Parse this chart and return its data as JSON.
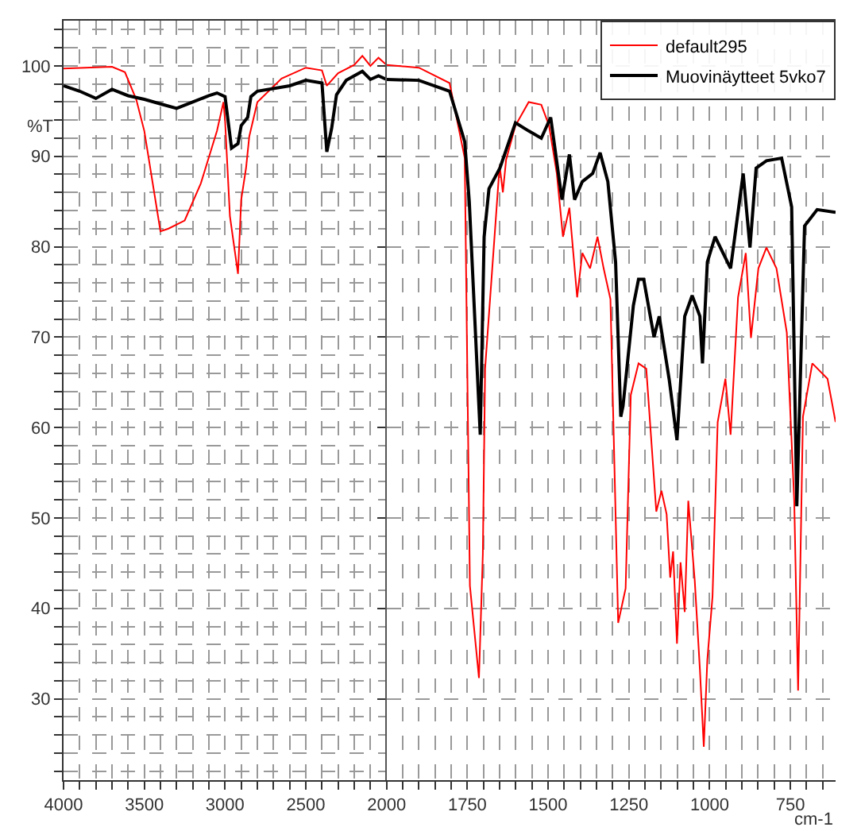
{
  "chart_data": [
    {
      "type": "line",
      "ylabel": "%T",
      "xlim": [
        4000,
        2000
      ],
      "ylim": [
        21,
        105
      ],
      "grid": true,
      "xticks": [
        4000,
        {
          "value": 3900,
          "label": null
        },
        {
          "value": 3800,
          "label": null
        },
        {
          "value": 3700,
          "label": null
        },
        {
          "value": 3600,
          "label": null
        },
        3500,
        {
          "value": 3400,
          "label": null
        },
        {
          "value": 3300,
          "label": null
        },
        {
          "value": 3200,
          "label": null
        },
        {
          "value": 3100,
          "label": null
        },
        3000,
        {
          "value": 2900,
          "label": null
        },
        {
          "value": 2800,
          "label": null
        },
        {
          "value": 2700,
          "label": null
        },
        {
          "value": 2600,
          "label": null
        },
        2500,
        {
          "value": 2400,
          "label": null
        },
        {
          "value": 2300,
          "label": null
        },
        {
          "value": 2200,
          "label": null
        },
        {
          "value": 2100,
          "label": null
        },
        2000
      ],
      "yticks": [
        {
          "value": 22,
          "label": null
        },
        {
          "value": 24,
          "label": null
        },
        {
          "value": 26,
          "label": null
        },
        {
          "value": 28,
          "label": null
        },
        30,
        {
          "value": 32,
          "label": null
        },
        {
          "value": 34,
          "label": null
        },
        {
          "value": 36,
          "label": null
        },
        {
          "value": 38,
          "label": null
        },
        40,
        {
          "value": 42,
          "label": null
        },
        {
          "value": 44,
          "label": null
        },
        {
          "value": 46,
          "label": null
        },
        {
          "value": 48,
          "label": null
        },
        50,
        {
          "value": 52,
          "label": null
        },
        {
          "value": 54,
          "label": null
        },
        {
          "value": 56,
          "label": null
        },
        {
          "value": 58,
          "label": null
        },
        60,
        {
          "value": 62,
          "label": null
        },
        {
          "value": 64,
          "label": null
        },
        {
          "value": 66,
          "label": null
        },
        {
          "value": 68,
          "label": null
        },
        70,
        {
          "value": 72,
          "label": null
        },
        {
          "value": 74,
          "label": null
        },
        {
          "value": 76,
          "label": null
        },
        {
          "value": 78,
          "label": null
        },
        80,
        {
          "value": 82,
          "label": null
        },
        {
          "value": 84,
          "label": null
        },
        {
          "value": 86,
          "label": null
        },
        {
          "value": 88,
          "label": null
        },
        90,
        {
          "value": 92,
          "label": null
        },
        {
          "value": 94,
          "label": null
        },
        {
          "value": 96,
          "label": null
        },
        {
          "value": 98,
          "label": null
        },
        100,
        {
          "value": 102,
          "label": null
        },
        {
          "value": 104,
          "label": null
        }
      ],
      "series": [
        {
          "color": "#ff0000",
          "x": [
            4000,
            3700,
            3620,
            3550,
            3500,
            3400,
            3350,
            3250,
            3150,
            3050,
            3010,
            3000,
            2970,
            2920,
            2900,
            2870,
            2850,
            2800,
            2650,
            2500,
            2400,
            2370,
            2300,
            2200,
            2150,
            2100,
            2050,
            2000
          ],
          "values": [
            99.7,
            99.9,
            99.3,
            96.3,
            92.8,
            81.7,
            82.0,
            82.9,
            87.0,
            92.8,
            96.0,
            94.0,
            83.4,
            77.0,
            85.2,
            88.7,
            92.2,
            96.0,
            98.6,
            99.8,
            99.5,
            97.8,
            99.2,
            100.1,
            101.1,
            100.0,
            100.9,
            100.1
          ]
        },
        {
          "color": "#000000",
          "x": [
            4000,
            3900,
            3800,
            3700,
            3600,
            3500,
            3400,
            3300,
            3200,
            3100,
            3050,
            3000,
            2960,
            2920,
            2900,
            2860,
            2840,
            2800,
            2600,
            2500,
            2400,
            2370,
            2340,
            2310,
            2250,
            2150,
            2100,
            2050,
            2000
          ],
          "values": [
            97.8,
            97.2,
            96.4,
            97.4,
            96.7,
            96.3,
            95.8,
            95.3,
            96.0,
            96.7,
            97.0,
            96.6,
            90.9,
            91.4,
            93.4,
            94.3,
            96.6,
            97.2,
            97.8,
            98.4,
            98.1,
            90.5,
            93.1,
            96.8,
            98.4,
            99.4,
            98.5,
            98.9,
            98.5
          ]
        }
      ]
    },
    {
      "type": "line",
      "xlabel": "cm-1",
      "xlim": [
        2000,
        610
      ],
      "ylim": [
        21,
        105
      ],
      "grid": true,
      "tick_labels": "x",
      "legend": "top right",
      "xticks": [
        {
          "value": 1950,
          "label": null
        },
        {
          "value": 1900,
          "label": null
        },
        {
          "value": 1850,
          "label": null
        },
        {
          "value": 1800,
          "label": null
        },
        1750,
        {
          "value": 1700,
          "label": null
        },
        {
          "value": 1650,
          "label": null
        },
        {
          "value": 1600,
          "label": null
        },
        {
          "value": 1550,
          "label": null
        },
        1500,
        {
          "value": 1450,
          "label": null
        },
        {
          "value": 1400,
          "label": null
        },
        {
          "value": 1350,
          "label": null
        },
        {
          "value": 1300,
          "label": null
        },
        1250,
        {
          "value": 1200,
          "label": null
        },
        {
          "value": 1150,
          "label": null
        },
        {
          "value": 1100,
          "label": null
        },
        {
          "value": 1050,
          "label": null
        },
        1000,
        {
          "value": 950,
          "label": null
        },
        {
          "value": 900,
          "label": null
        },
        {
          "value": 850,
          "label": null
        },
        {
          "value": 800,
          "label": null
        },
        750,
        {
          "value": 700,
          "label": null
        },
        {
          "value": 650,
          "label": null
        }
      ],
      "yticks": [
        30,
        40,
        50,
        60,
        70,
        80,
        90,
        100
      ],
      "series": [
        {
          "name": "default295",
          "color": "#ff0000",
          "x": [
            2000,
            1900,
            1805,
            1758,
            1742,
            1714,
            1702,
            1695,
            1650,
            1640,
            1630,
            1601,
            1560,
            1521,
            1497,
            1473,
            1454,
            1434,
            1410,
            1394,
            1370,
            1347,
            1328,
            1307,
            1283,
            1260,
            1244,
            1220,
            1196,
            1165,
            1149,
            1133,
            1122,
            1113,
            1101,
            1090,
            1077,
            1066,
            1046,
            1030,
            1018,
            1007,
            991,
            975,
            951,
            935,
            912,
            888,
            872,
            849,
            824,
            793,
            761,
            738,
            726,
            711,
            682,
            635,
            610
          ],
          "values": [
            100.1,
            99.8,
            98.1,
            89.8,
            42.5,
            32.3,
            46.0,
            66.5,
            89.0,
            86.0,
            89.6,
            93.4,
            96.0,
            95.7,
            93.4,
            88.1,
            81.1,
            84.3,
            74.4,
            79.3,
            77.6,
            81.1,
            77.6,
            74.2,
            38.4,
            42.2,
            63.6,
            67.1,
            66.5,
            50.7,
            53.0,
            50.4,
            43.4,
            46.3,
            36.1,
            45.1,
            39.6,
            51.9,
            43.1,
            33.2,
            24.7,
            34.3,
            41.3,
            60.6,
            65.4,
            59.2,
            74.4,
            79.3,
            69.9,
            77.6,
            79.9,
            77.6,
            70.5,
            51.9,
            30.9,
            61.2,
            67.1,
            65.4,
            60.6
          ]
        },
        {
          "name": "Muovinäytteet 5vko7",
          "color": "#000000",
          "x": [
            2000,
            1900,
            1805,
            1758,
            1744,
            1710,
            1698,
            1683,
            1649,
            1601,
            1560,
            1521,
            1492,
            1457,
            1434,
            1418,
            1394,
            1362,
            1339,
            1315,
            1291,
            1275,
            1268,
            1236,
            1220,
            1204,
            1172,
            1156,
            1125,
            1101,
            1077,
            1054,
            1030,
            1022,
            1007,
            983,
            935,
            896,
            875,
            856,
            824,
            777,
            746,
            730,
            706,
            667,
            610
          ],
          "values": [
            98.5,
            98.4,
            97.2,
            91.6,
            85.0,
            59.2,
            81.1,
            86.4,
            88.7,
            93.7,
            92.8,
            92.0,
            94.3,
            85.2,
            90.2,
            85.2,
            87.2,
            88.1,
            90.4,
            87.2,
            78.3,
            61.2,
            62.4,
            73.5,
            76.4,
            76.4,
            70.0,
            72.3,
            65.3,
            58.6,
            72.3,
            74.6,
            72.3,
            67.1,
            78.3,
            81.1,
            77.6,
            88.1,
            79.9,
            88.7,
            89.5,
            89.8,
            84.4,
            51.3,
            82.3,
            84.1,
            83.8
          ]
        }
      ]
    }
  ]
}
